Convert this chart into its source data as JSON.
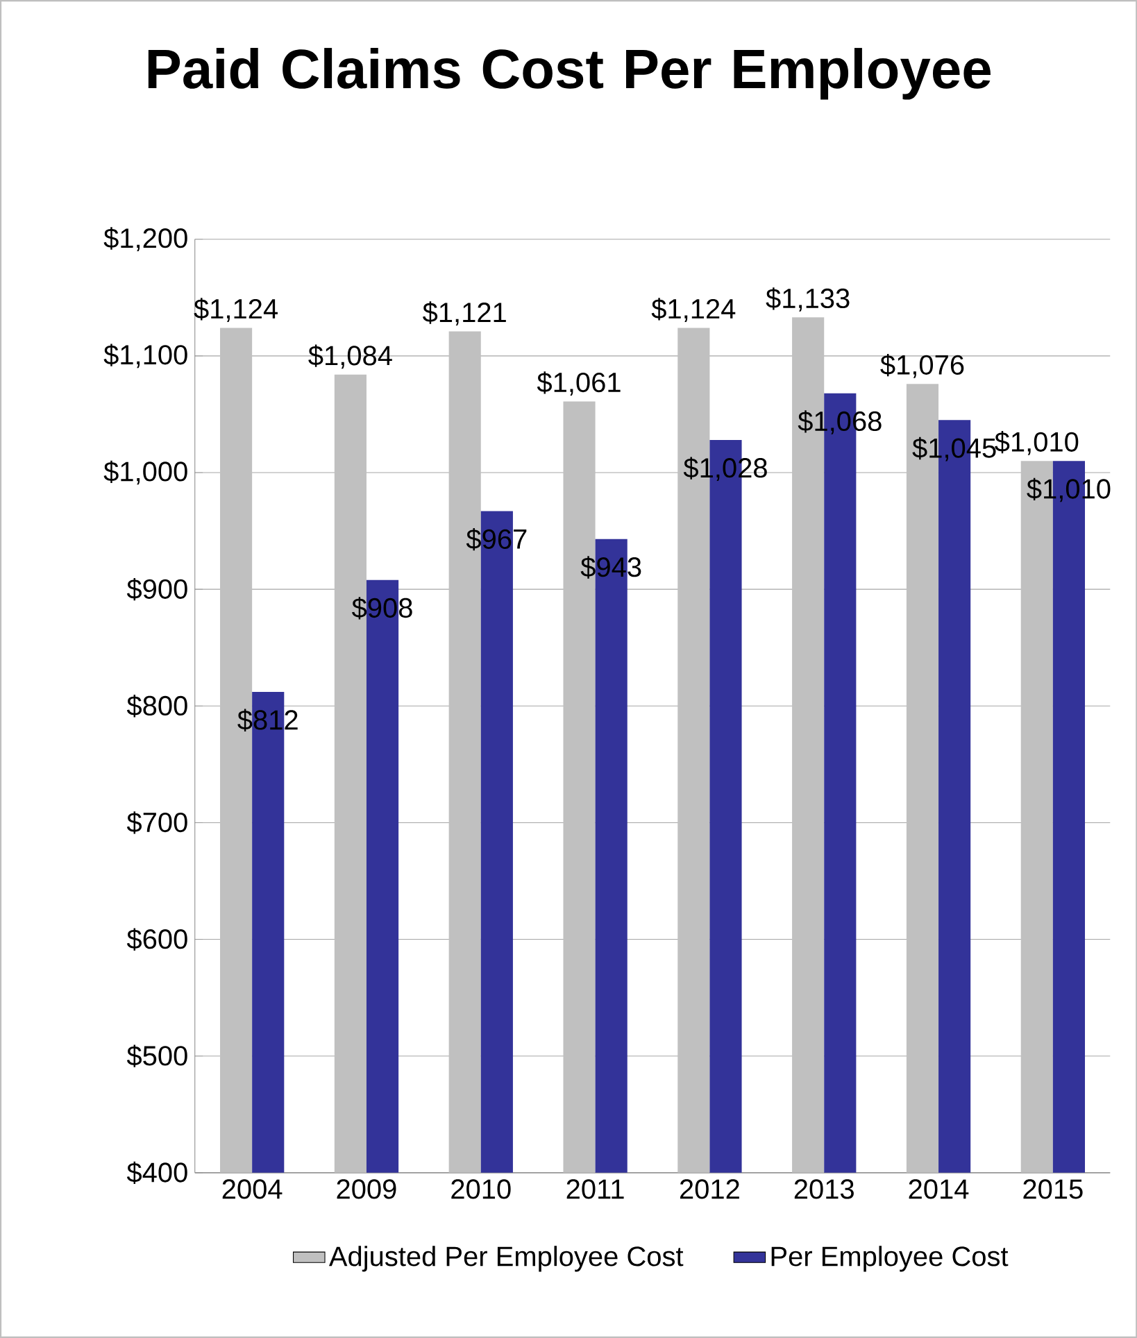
{
  "chart_data": {
    "type": "bar",
    "title": "Paid Claims Cost Per Employee",
    "categories": [
      "2004",
      "2009",
      "2010",
      "2011",
      "2012",
      "2013",
      "2014",
      "2015"
    ],
    "series": [
      {
        "name": "Adjusted Per Employee Cost",
        "color": "#c0c0c0",
        "values": [
          1124,
          1084,
          1121,
          1061,
          1124,
          1133,
          1076,
          1010
        ],
        "value_labels": [
          "$1,124",
          "$1,084",
          "$1,121",
          "$1,061",
          "$1,124",
          "$1,133",
          "$1,076",
          "$1,010"
        ]
      },
      {
        "name": "Per Employee Cost",
        "color": "#333399",
        "values": [
          812,
          908,
          967,
          943,
          1028,
          1068,
          1045,
          1010
        ],
        "value_labels": [
          "$812",
          "$908",
          "$967",
          "$943",
          "$1,028",
          "$1,068",
          "$1,045",
          "$1,010"
        ]
      }
    ],
    "ylim": [
      400,
      1200
    ],
    "yticks": [
      {
        "value": 400,
        "label": "$400"
      },
      {
        "value": 500,
        "label": "$500"
      },
      {
        "value": 600,
        "label": "$600"
      },
      {
        "value": 700,
        "label": "$700"
      },
      {
        "value": 800,
        "label": "$800"
      },
      {
        "value": 900,
        "label": "$900"
      },
      {
        "value": 1000,
        "label": "$1,000"
      },
      {
        "value": 1100,
        "label": "$1,100"
      },
      {
        "value": 1200,
        "label": "$1,200"
      }
    ],
    "grid": "y",
    "legend": "bottom"
  }
}
